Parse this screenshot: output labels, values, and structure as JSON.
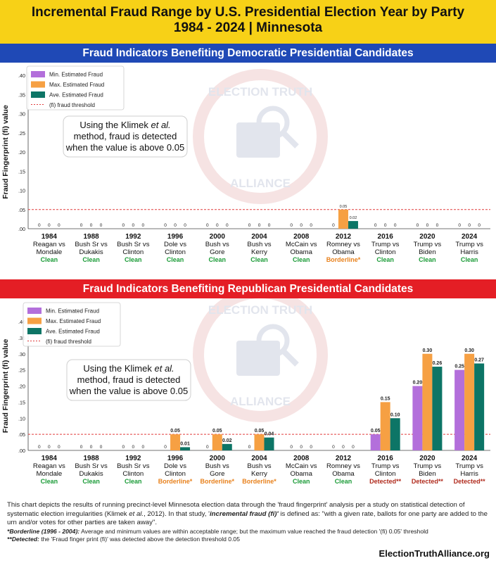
{
  "header": {
    "title_line1": "Incremental Fraud Range by U.S. Presidential Election Year by Party",
    "title_line2": "1984 - 2024  | Minnesota"
  },
  "colors": {
    "min": "#b36fdb",
    "max": "#f6a043",
    "ave": "#0d7566",
    "threshold": "#e13b3b",
    "clean": "#1a9b37",
    "borderline": "#e8811c",
    "detected": "#b02a1c",
    "dem_band": "#1f49b6",
    "rep_band": "#e41e25",
    "header_bg": "#f7d117"
  },
  "legend": [
    {
      "key": "min",
      "label": "Min. Estimated Fraud"
    },
    {
      "key": "max",
      "label": "Max. Estimated Fraud"
    },
    {
      "key": "ave",
      "label": "Ave. Estimated Fraud"
    },
    {
      "key": "threshold",
      "label": "(fi) fraud threshold"
    }
  ],
  "watermark": {
    "top": "ELECTION TRUTH",
    "bottom": "ALLIANCE"
  },
  "callout": {
    "line1a": "Using the Klimek ",
    "line1b": "et al.",
    "line2": "method, fraud is detected",
    "line3": "when the value is above 0.05"
  },
  "chart_data": [
    {
      "type": "bar",
      "title": "Fraud Indicators Benefiting Democratic Presidential Candidates",
      "ylabel": "Fraud Fingerprint (fi) value",
      "ylim": [
        0,
        0.4
      ],
      "yticks": [
        ".00",
        ".05",
        ".10",
        ".15",
        ".20",
        ".25",
        ".30",
        ".35",
        ".40"
      ],
      "threshold": 0.05,
      "legend_position": "top-left",
      "categories": [
        {
          "year": "1984",
          "line1": "Reagan vs",
          "line2": "Mondale",
          "status": "Clean",
          "status_class": "clean"
        },
        {
          "year": "1988",
          "line1": "Bush Sr vs",
          "line2": "Dukakis",
          "status": "Clean",
          "status_class": "clean"
        },
        {
          "year": "1992",
          "line1": "Bush Sr vs",
          "line2": "Clinton",
          "status": "Clean",
          "status_class": "clean"
        },
        {
          "year": "1996",
          "line1": "Dole vs",
          "line2": "Clinton",
          "status": "Clean",
          "status_class": "clean"
        },
        {
          "year": "2000",
          "line1": "Bush vs",
          "line2": "Gore",
          "status": "Clean",
          "status_class": "clean"
        },
        {
          "year": "2004",
          "line1": "Bush vs",
          "line2": "Kerry",
          "status": "Clean",
          "status_class": "clean"
        },
        {
          "year": "2008",
          "line1": "McCain vs",
          "line2": "Obama",
          "status": "Clean",
          "status_class": "clean"
        },
        {
          "year": "2012",
          "line1": "Romney vs",
          "line2": "Obama",
          "status": "Borderline*",
          "status_class": "borderline"
        },
        {
          "year": "2016",
          "line1": "Trump vs",
          "line2": "Clinton",
          "status": "Clean",
          "status_class": "clean"
        },
        {
          "year": "2020",
          "line1": "Trump vs",
          "line2": "Biden",
          "status": "Clean",
          "status_class": "clean"
        },
        {
          "year": "2024",
          "line1": "Trump vs",
          "line2": "Harris",
          "status": "Clean",
          "status_class": "clean"
        }
      ],
      "series": [
        {
          "name": "Min. Estimated Fraud",
          "key": "min",
          "values": [
            0,
            0,
            0,
            0,
            0,
            0,
            0,
            0,
            0,
            0,
            0
          ],
          "labels": [
            "0",
            "0",
            "0",
            "0",
            "0",
            "0",
            "0",
            "0",
            "0",
            "0",
            "0"
          ]
        },
        {
          "name": "Max. Estimated Fraud",
          "key": "max",
          "values": [
            0,
            0,
            0,
            0,
            0,
            0,
            0,
            0.05,
            0,
            0,
            0
          ],
          "labels": [
            "0",
            "0",
            "0",
            "0",
            "0",
            "0",
            "0",
            "0.05",
            "0",
            "0",
            "0"
          ]
        },
        {
          "name": "Ave. Estimated Fraud",
          "key": "ave",
          "values": [
            0,
            0,
            0,
            0,
            0,
            0,
            0,
            0.02,
            0,
            0,
            0
          ],
          "labels": [
            "0",
            "0",
            "0",
            "0",
            "0",
            "0",
            "0",
            "0.02",
            "0",
            "0",
            "0"
          ]
        }
      ]
    },
    {
      "type": "bar",
      "title": "Fraud Indicators Benefiting Republican Presidential Candidates",
      "ylabel": "Fraud Fingerprint (fi) value",
      "ylim": [
        0,
        0.4
      ],
      "yticks": [
        ".00",
        ".05",
        ".10",
        ".15",
        ".20",
        ".25",
        ".30",
        ".35",
        ".40"
      ],
      "threshold": 0.05,
      "legend_position": "top-left",
      "categories": [
        {
          "year": "1984",
          "line1": "Reagan vs",
          "line2": "Mondale",
          "status": "Clean",
          "status_class": "clean"
        },
        {
          "year": "1988",
          "line1": "Bush Sr vs",
          "line2": "Dukakis",
          "status": "Clean",
          "status_class": "clean"
        },
        {
          "year": "1992",
          "line1": "Bush Sr vs",
          "line2": "Clinton",
          "status": "Clean",
          "status_class": "clean"
        },
        {
          "year": "1996",
          "line1": "Dole vs",
          "line2": "Clinton",
          "status": "Borderline*",
          "status_class": "borderline"
        },
        {
          "year": "2000",
          "line1": "Bush vs",
          "line2": "Gore",
          "status": "Borderline*",
          "status_class": "borderline"
        },
        {
          "year": "2004",
          "line1": "Bush vs",
          "line2": "Kerry",
          "status": "Borderline*",
          "status_class": "borderline"
        },
        {
          "year": "2008",
          "line1": "McCain vs",
          "line2": "Obama",
          "status": "Clean",
          "status_class": "clean"
        },
        {
          "year": "2012",
          "line1": "Romney vs",
          "line2": "Obama",
          "status": "Clean",
          "status_class": "clean"
        },
        {
          "year": "2016",
          "line1": "Trump vs",
          "line2": "Clinton",
          "status": "Detected**",
          "status_class": "detected"
        },
        {
          "year": "2020",
          "line1": "Trump vs",
          "line2": "Biden",
          "status": "Detected**",
          "status_class": "detected"
        },
        {
          "year": "2024",
          "line1": "Trump vs",
          "line2": "Harris",
          "status": "Detected**",
          "status_class": "detected"
        }
      ],
      "series": [
        {
          "name": "Min. Estimated Fraud",
          "key": "min",
          "values": [
            0,
            0,
            0,
            0,
            0,
            0,
            0,
            0,
            0.05,
            0.2,
            0.25
          ],
          "labels": [
            "0",
            "0",
            "0",
            "0",
            "0",
            "0",
            "0",
            "0",
            "0.05",
            "0.20",
            "0.25"
          ]
        },
        {
          "name": "Max. Estimated Fraud",
          "key": "max",
          "values": [
            0,
            0,
            0,
            0.05,
            0.05,
            0.05,
            0,
            0,
            0.15,
            0.3,
            0.3
          ],
          "labels": [
            "0",
            "0",
            "0",
            "0.05",
            "0.05",
            "0.05",
            "0",
            "0",
            "0.15",
            "0.30",
            "0.30"
          ]
        },
        {
          "name": "Ave. Estimated Fraud",
          "key": "ave",
          "values": [
            0,
            0,
            0,
            0.01,
            0.02,
            0.04,
            0,
            0,
            0.1,
            0.26,
            0.27
          ],
          "labels": [
            "0",
            "0",
            "0",
            "0.01",
            "0.02",
            "0.04",
            "0",
            "0",
            "0.10",
            "0.26",
            "0.27"
          ]
        }
      ]
    }
  ],
  "footer": {
    "para_a": "This chart depicts the results of running precinct-level Minnesota election data through the 'fraud fingerprint' analysis per a study on statistical detection of systematic election irregularities (Klimek ",
    "para_etal": "et al.",
    "para_b": ", 2012). In that study, '",
    "para_term": "incremental fraud (fi)'",
    "para_c": " is defined as: \"with a given rate, ballots for one party are added to the urn and/or votes for other parties are taken away\".",
    "note1_label": "*Borderline (1996 - 2004):",
    "note1_text": " Average and minimum values are within acceptable range; but the maximum value reached the fraud detection '(fi) 0.05' threshold",
    "note2_label": "**Detected:",
    "note2_text": " the 'Fraud finger print (fi)' was detected above the detection threshold 0.05",
    "site": "ElectionTruthAlliance.org"
  }
}
